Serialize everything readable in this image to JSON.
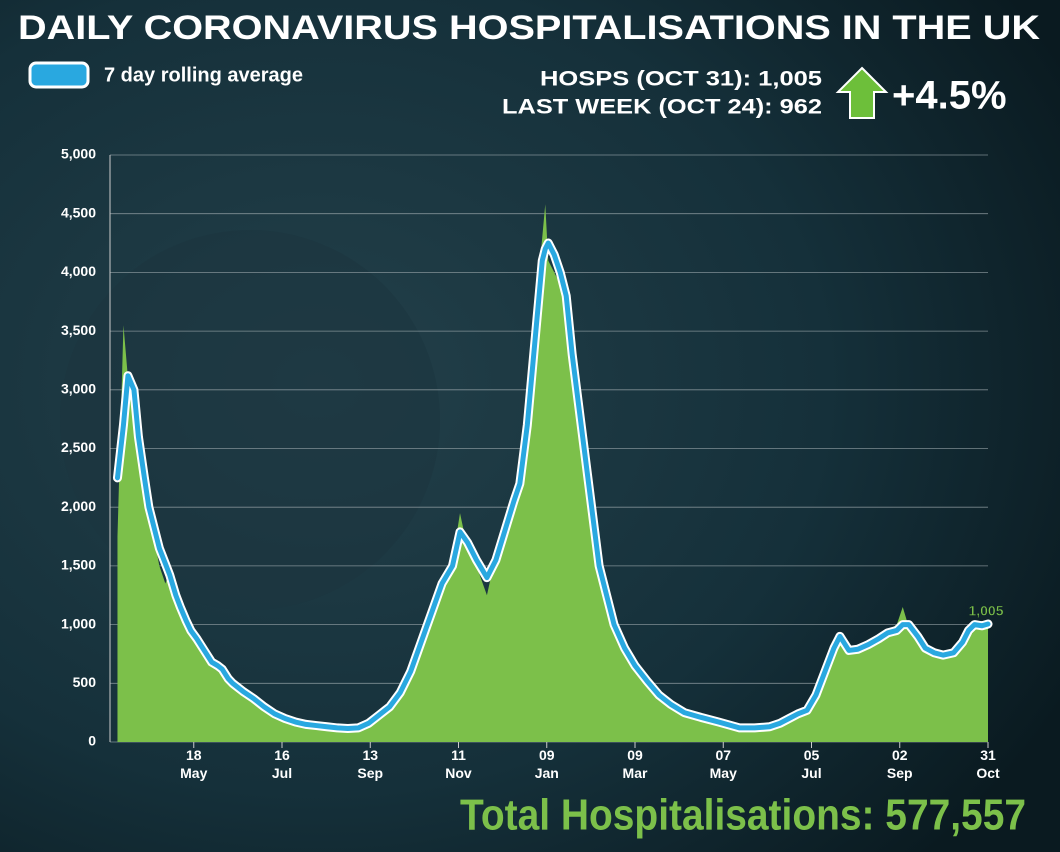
{
  "chart_data": {
    "type": "area_line",
    "title": "DAILY CORONAVIRUS HOSPITALISATIONS IN THE UK",
    "stat_current": "HOSPS (OCT 31): 1,005",
    "stat_last_week": "LAST WEEK (OCT 24): 962",
    "stat_change": "+4.5%",
    "annotation": "1,005",
    "footer": "Total Hospitalisations: 577,557",
    "x": [
      5,
      9,
      12,
      16,
      19,
      23,
      26,
      30,
      33,
      37,
      40,
      44,
      47,
      51,
      54,
      58,
      61,
      65,
      68,
      72,
      75,
      79,
      82,
      89,
      96,
      103,
      110,
      117,
      124,
      131,
      138,
      145,
      152,
      159,
      166,
      173,
      180,
      187,
      194,
      201,
      208,
      215,
      222,
      229,
      234,
      239,
      245,
      252,
      258,
      264,
      270,
      274,
      279,
      284,
      289,
      291,
      293,
      297,
      301,
      305,
      309,
      313,
      317,
      322,
      327,
      332,
      337,
      344,
      351,
      359,
      367,
      375,
      384,
      395,
      407,
      421,
      431,
      441,
      448,
      454,
      460,
      466,
      472,
      478,
      484,
      488,
      494,
      500,
      507,
      514,
      520,
      526,
      530,
      534,
      540,
      545,
      551,
      557,
      564,
      570,
      574,
      578,
      583,
      587
    ],
    "series": [
      {
        "name": "7 day rolling average",
        "color": "#29a8e0",
        "values": [
          2250,
          2700,
          3120,
          3000,
          2600,
          2250,
          2000,
          1800,
          1650,
          1520,
          1420,
          1250,
          1150,
          1030,
          950,
          880,
          820,
          740,
          680,
          650,
          620,
          540,
          500,
          430,
          370,
          300,
          240,
          200,
          170,
          150,
          140,
          130,
          120,
          115,
          120,
          160,
          230,
          300,
          420,
          600,
          850,
          1100,
          1350,
          1500,
          1790,
          1700,
          1550,
          1400,
          1550,
          1800,
          2050,
          2200,
          2700,
          3400,
          4100,
          4200,
          4250,
          4150,
          4000,
          3800,
          3300,
          2900,
          2500,
          2000,
          1500,
          1250,
          1000,
          800,
          650,
          520,
          400,
          320,
          250,
          210,
          170,
          120,
          120,
          130,
          160,
          200,
          240,
          270,
          400,
          600,
          800,
          900,
          780,
          790,
          830,
          880,
          930,
          950,
          1000,
          1000,
          900,
          800,
          760,
          740,
          760,
          850,
          950,
          1000,
          990,
          1005
        ]
      },
      {
        "color": "#7cc04a",
        "values": [
          1750,
          3550,
          3100,
          2800,
          2500,
          2150,
          1950,
          1700,
          1500,
          1350,
          1450,
          1200,
          1100,
          1000,
          900,
          850,
          780,
          700,
          650,
          600,
          600,
          520,
          480,
          420,
          350,
          280,
          230,
          190,
          160,
          145,
          135,
          125,
          115,
          110,
          120,
          165,
          240,
          320,
          440,
          620,
          880,
          1150,
          1420,
          1550,
          1950,
          1650,
          1500,
          1250,
          1600,
          1850,
          2100,
          2400,
          2900,
          3600,
          4300,
          4580,
          4100,
          4000,
          3900,
          3600,
          3100,
          2700,
          2350,
          1900,
          1450,
          1200,
          950,
          780,
          620,
          500,
          390,
          300,
          240,
          200,
          160,
          115,
          125,
          135,
          165,
          210,
          250,
          280,
          420,
          650,
          850,
          920,
          750,
          800,
          850,
          900,
          950,
          1000,
          1150,
          980,
          880,
          780,
          740,
          730,
          770,
          880,
          980,
          1010,
          980,
          1005
        ]
      }
    ],
    "xlim": [
      0,
      587
    ],
    "xticks": [
      {
        "value": 56,
        "label": "18 May"
      },
      {
        "value": 115,
        "label": "16 Jul"
      },
      {
        "value": 174,
        "label": "13 Sep"
      },
      {
        "value": 233,
        "label": "11 Nov"
      },
      {
        "value": 292,
        "label": "09 Jan"
      },
      {
        "value": 351,
        "label": "09 Mar"
      },
      {
        "value": 410,
        "label": "07 May"
      },
      {
        "value": 469,
        "label": "05 Jul"
      },
      {
        "value": 528,
        "label": "02 Sep"
      },
      {
        "value": 587,
        "label": "31 Oct"
      }
    ],
    "ylim": [
      0,
      5000
    ],
    "yticks": [
      0,
      500,
      {
        "value": 1000,
        "label": "1,000"
      },
      {
        "value": 1500,
        "label": "1,500"
      },
      {
        "value": 2000,
        "label": "2,000"
      },
      {
        "value": 2500,
        "label": "2,500"
      },
      {
        "value": 3000,
        "label": "3,000"
      },
      {
        "value": 3500,
        "label": "3,500"
      },
      {
        "value": 4000,
        "label": "4,000"
      },
      {
        "value": 4500,
        "label": "4,500"
      },
      {
        "value": 5000,
        "label": "5,000"
      }
    ],
    "grid": true
  }
}
